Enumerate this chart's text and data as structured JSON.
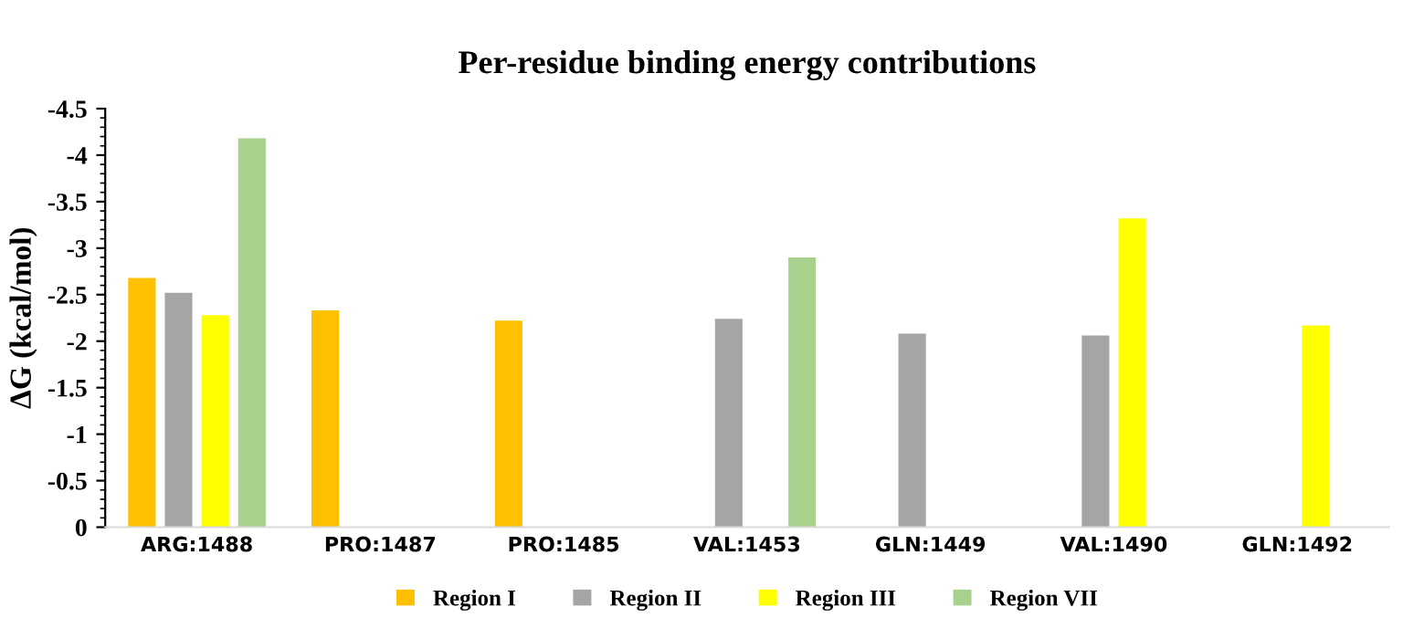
{
  "chart_data": {
    "type": "bar",
    "title": "Per-residue binding energy contributions",
    "ylabel": "ΔG (kcal/mol)",
    "categories": [
      "ARG:1488",
      "PRO:1487",
      "PRO:1485",
      "VAL:1453",
      "GLN:1449",
      "VAL:1490",
      "GLN:1492"
    ],
    "series": [
      {
        "name": "Region I",
        "color": "#ffc000",
        "values": [
          -2.68,
          -2.33,
          -2.22,
          null,
          null,
          null,
          null
        ]
      },
      {
        "name": "Region II",
        "color": "#a5a5a5",
        "values": [
          -2.52,
          null,
          null,
          -2.24,
          -2.08,
          -2.06,
          null
        ]
      },
      {
        "name": "Region III",
        "color": "#ffff00",
        "values": [
          -2.28,
          null,
          null,
          null,
          null,
          -3.32,
          -2.17
        ]
      },
      {
        "name": "Region VII",
        "color": "#a9d18e",
        "values": [
          -4.18,
          null,
          null,
          -2.9,
          null,
          null,
          null
        ]
      }
    ],
    "ylim": [
      0,
      -4.5
    ],
    "yticks": [
      -4.5,
      -4,
      -3.5,
      -3,
      -2.5,
      -2,
      -1.5,
      -1,
      -0.5,
      0
    ],
    "grid": false,
    "legend": "bottom"
  }
}
